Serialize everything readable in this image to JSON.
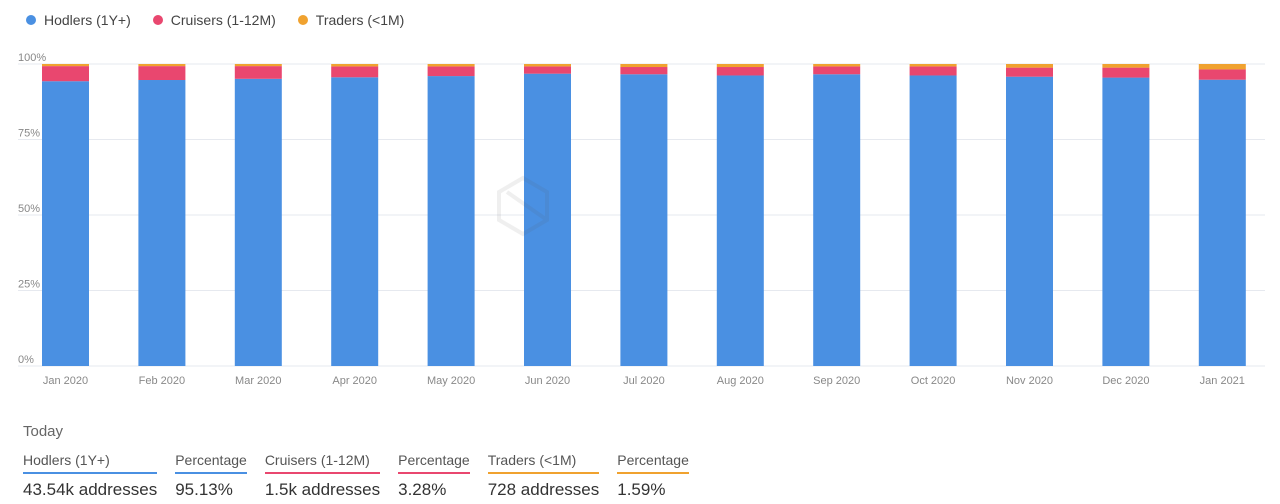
{
  "colors": {
    "hodlers": "#4a90e2",
    "cruisers": "#e9476f",
    "traders": "#f0a22f",
    "grid": "#e6e9ef",
    "tick": "#888888"
  },
  "chart_data": {
    "type": "bar",
    "stacked": true,
    "categories": [
      "Jan 2020",
      "Feb 2020",
      "Mar 2020",
      "Apr 2020",
      "May 2020",
      "Jun 2020",
      "Jul 2020",
      "Aug 2020",
      "Sep 2020",
      "Oct 2020",
      "Nov 2020",
      "Dec 2020",
      "Jan 2021"
    ],
    "series": [
      {
        "name": "Hodlers (1Y+)",
        "color": "#4a90e2",
        "values": [
          94.3,
          94.7,
          95.1,
          95.6,
          96.0,
          96.8,
          96.6,
          96.2,
          96.6,
          96.2,
          95.8,
          95.5,
          94.8
        ]
      },
      {
        "name": "Cruisers (1-12M)",
        "color": "#e9476f",
        "values": [
          5.0,
          4.6,
          4.2,
          3.6,
          3.2,
          2.4,
          2.4,
          2.8,
          2.6,
          3.0,
          3.0,
          3.3,
          3.4
        ]
      },
      {
        "name": "Traders (<1M)",
        "color": "#f0a22f",
        "values": [
          0.7,
          0.7,
          0.7,
          0.8,
          0.8,
          0.8,
          1.0,
          1.0,
          0.8,
          0.8,
          1.2,
          1.2,
          1.8
        ]
      }
    ],
    "y_ticks": [
      "0%",
      "25%",
      "50%",
      "75%",
      "100%"
    ],
    "ylim": [
      0,
      100
    ],
    "grid": true,
    "legend_position": "top-left"
  },
  "today": {
    "title": "Today",
    "stats": [
      {
        "label": "Hodlers (1Y+)",
        "value": "43.54k addresses",
        "color": "#4a90e2",
        "key": "hodlers-count"
      },
      {
        "label": "Percentage",
        "value": "95.13%",
        "color": "#4a90e2",
        "key": "hodlers-percentage"
      },
      {
        "label": "Cruisers (1-12M)",
        "value": "1.5k addresses",
        "color": "#e9476f",
        "key": "cruisers-count"
      },
      {
        "label": "Percentage",
        "value": "3.28%",
        "color": "#e9476f",
        "key": "cruisers-percentage"
      },
      {
        "label": "Traders (<1M)",
        "value": "728 addresses",
        "color": "#f0a22f",
        "key": "traders-count"
      },
      {
        "label": "Percentage",
        "value": "1.59%",
        "color": "#f0a22f",
        "key": "traders-percentage"
      }
    ]
  }
}
